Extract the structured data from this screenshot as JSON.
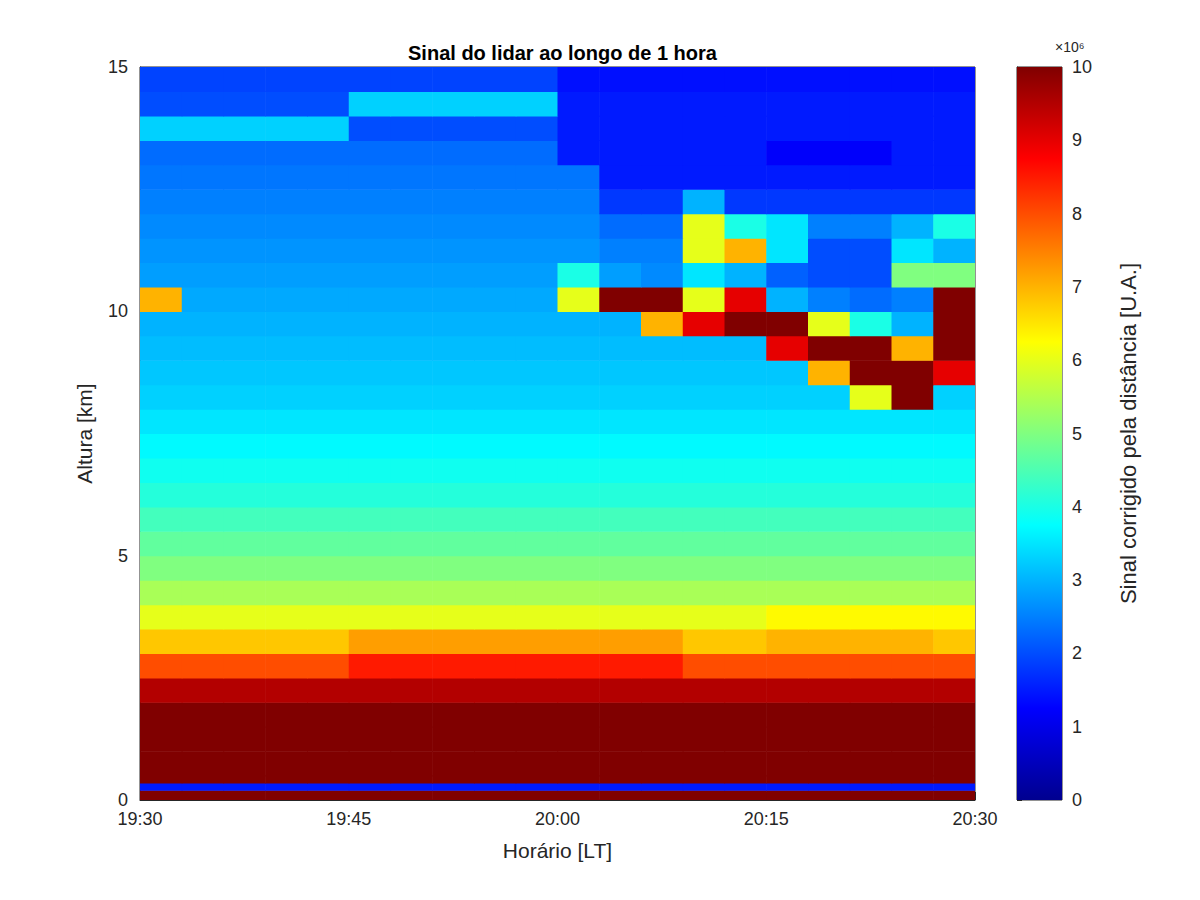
{
  "chart_data": {
    "type": "heatmap",
    "title": "Sinal do lidar ao longo de 1 hora",
    "x_label": "Horário [LT]",
    "y_label": "Altura [km]",
    "xlim": [
      1170,
      1230
    ],
    "xticks": [
      {
        "value": 1170,
        "label": "19:30"
      },
      {
        "value": 1185,
        "label": "19:45"
      },
      {
        "value": 1200,
        "label": "20:00"
      },
      {
        "value": 1215,
        "label": "20:15"
      },
      {
        "value": 1230,
        "label": "20:30"
      }
    ],
    "ylim": [
      0,
      15
    ],
    "yticks": [
      0,
      5,
      10,
      15
    ],
    "grid": false,
    "x_edges": [
      1170,
      1173,
      1176,
      1179,
      1182,
      1185,
      1188,
      1191,
      1194,
      1197,
      1200,
      1203,
      1206,
      1209,
      1212,
      1215,
      1218,
      1221,
      1224,
      1227,
      1230
    ],
    "y_edges": [
      0,
      0.2,
      0.35,
      0.5,
      1,
      1.5,
      2,
      2.5,
      3,
      3.5,
      4,
      4.5,
      5,
      5.5,
      6,
      6.5,
      7,
      7.5,
      8,
      8.5,
      9,
      9.5,
      10,
      10.5,
      11,
      11.5,
      12,
      12.5,
      13,
      13.5,
      14,
      14.5,
      15
    ],
    "cells": [
      [
        10,
        10,
        10,
        10,
        10,
        10,
        10,
        10,
        10,
        10,
        10,
        10,
        10,
        10,
        10,
        10,
        10,
        10,
        10,
        10
      ],
      [
        1.5,
        1.5,
        1.5,
        1.5,
        1.5,
        1.5,
        1.5,
        1.5,
        1.5,
        1.5,
        1.5,
        1.5,
        1.5,
        1.5,
        1.5,
        1.5,
        1.5,
        1.5,
        1.5,
        1.5
      ],
      [
        10,
        10,
        10,
        10,
        10,
        10,
        10,
        10,
        10,
        10,
        10,
        10,
        10,
        10,
        10,
        10,
        10,
        10,
        10,
        10
      ],
      [
        10,
        10,
        10,
        10,
        10,
        10,
        10,
        10,
        10,
        10,
        10,
        10,
        10,
        10,
        10,
        10,
        10,
        10,
        10,
        10
      ],
      [
        10,
        10,
        10,
        10,
        10,
        10,
        10,
        10,
        10,
        10,
        10,
        10,
        10,
        10,
        10,
        10,
        10,
        10,
        10,
        10
      ],
      [
        10,
        10,
        10,
        10,
        10,
        10,
        10,
        10,
        10,
        10,
        10,
        10,
        10,
        10,
        10,
        10,
        10,
        10,
        10,
        10
      ],
      [
        9.5,
        9.5,
        9.5,
        9.5,
        9.5,
        9.5,
        9.5,
        9.5,
        9.5,
        9.5,
        9.5,
        9.5,
        9.5,
        9.5,
        9.5,
        9.5,
        9.5,
        9.5,
        9.5,
        9.5
      ],
      [
        8,
        8,
        8,
        8,
        8,
        8.5,
        8.5,
        8.5,
        8.5,
        8.5,
        8.5,
        8.5,
        8.5,
        8,
        8,
        8,
        8,
        8,
        8,
        8
      ],
      [
        6.8,
        6.8,
        6.8,
        6.8,
        6.8,
        7.2,
        7.2,
        7.2,
        7.2,
        7.2,
        7.2,
        7.2,
        7.2,
        6.8,
        6.8,
        7,
        7,
        7,
        7,
        6.8
      ],
      [
        6,
        6,
        6,
        6,
        6,
        6,
        6,
        6,
        6,
        6,
        6,
        6,
        6,
        6,
        6,
        6.3,
        6.3,
        6.3,
        6.3,
        6.3
      ],
      [
        5.4,
        5.4,
        5.4,
        5.4,
        5.4,
        5.4,
        5.4,
        5.4,
        5.4,
        5.4,
        5.4,
        5.4,
        5.4,
        5.4,
        5.4,
        5.4,
        5.4,
        5.4,
        5.4,
        5.4
      ],
      [
        5,
        5,
        5,
        5,
        5,
        5,
        5,
        5,
        5,
        5,
        5,
        5,
        5,
        5,
        5,
        5,
        5,
        5,
        5,
        5
      ],
      [
        4.7,
        4.7,
        4.7,
        4.7,
        4.7,
        4.7,
        4.7,
        4.7,
        4.7,
        4.7,
        4.7,
        4.7,
        4.7,
        4.7,
        4.7,
        4.7,
        4.7,
        4.7,
        4.7,
        4.7
      ],
      [
        4.4,
        4.4,
        4.4,
        4.4,
        4.4,
        4.4,
        4.4,
        4.4,
        4.4,
        4.4,
        4.4,
        4.4,
        4.4,
        4.4,
        4.4,
        4.4,
        4.4,
        4.4,
        4.4,
        4.4
      ],
      [
        4.1,
        4.1,
        4.1,
        4.1,
        4.1,
        4.1,
        4.1,
        4.1,
        4.1,
        4.1,
        4.1,
        4.1,
        4.1,
        4.1,
        4.1,
        4.1,
        4.1,
        4.1,
        4.1,
        4.1
      ],
      [
        3.9,
        3.9,
        3.9,
        3.9,
        3.9,
        3.9,
        3.9,
        3.9,
        3.9,
        3.9,
        3.9,
        3.9,
        3.9,
        3.9,
        3.9,
        3.9,
        3.9,
        3.9,
        3.9,
        3.9
      ],
      [
        3.7,
        3.7,
        3.7,
        3.7,
        3.7,
        3.7,
        3.7,
        3.7,
        3.7,
        3.7,
        3.7,
        3.7,
        3.7,
        3.7,
        3.7,
        3.7,
        3.7,
        3.7,
        3.7,
        3.7
      ],
      [
        3.5,
        3.5,
        3.5,
        3.5,
        3.5,
        3.5,
        3.5,
        3.5,
        3.5,
        3.5,
        3.5,
        3.5,
        3.5,
        3.5,
        3.5,
        3.5,
        3.5,
        3.5,
        3.5,
        3.5
      ],
      [
        3.3,
        3.3,
        3.3,
        3.3,
        3.3,
        3.3,
        3.3,
        3.3,
        3.3,
        3.3,
        3.3,
        3.3,
        3.3,
        3.3,
        3.3,
        3.3,
        3.3,
        6,
        10,
        3.3
      ],
      [
        3.2,
        3.2,
        3.2,
        3.2,
        3.2,
        3.2,
        3.2,
        3.2,
        3.2,
        3.2,
        3.2,
        3.2,
        3.2,
        3.2,
        3.2,
        3.2,
        7,
        10,
        10,
        9
      ],
      [
        3.1,
        3.1,
        3.1,
        3.1,
        3.1,
        3.1,
        3.1,
        3.1,
        3.1,
        3.1,
        3.1,
        3.1,
        3.1,
        3.1,
        3.1,
        9,
        10,
        10,
        7,
        10
      ],
      [
        3,
        3,
        3,
        3,
        3,
        3,
        3,
        3,
        3,
        3,
        3,
        3,
        7,
        9,
        10,
        10,
        6,
        4,
        3,
        10
      ],
      [
        7,
        2.9,
        2.9,
        2.9,
        2.9,
        2.9,
        2.9,
        2.9,
        2.9,
        2.9,
        6,
        10,
        10,
        6,
        9,
        3,
        2.5,
        2.3,
        2.5,
        10
      ],
      [
        2.8,
        2.8,
        2.8,
        2.8,
        2.8,
        2.8,
        2.8,
        2.8,
        2.8,
        2.8,
        4,
        2.8,
        2.6,
        3.5,
        3,
        2.2,
        2,
        2,
        5,
        5
      ],
      [
        2.7,
        2.7,
        2.7,
        2.7,
        2.7,
        2.7,
        2.7,
        2.7,
        2.7,
        2.7,
        2.7,
        2.5,
        2.5,
        6,
        7,
        3.5,
        2,
        2,
        3.5,
        3
      ],
      [
        2.6,
        2.6,
        2.6,
        2.6,
        2.6,
        2.6,
        2.6,
        2.6,
        2.6,
        2.6,
        2.6,
        2.3,
        2.3,
        6,
        4,
        3.5,
        2.5,
        2.5,
        3,
        4
      ],
      [
        2.5,
        2.5,
        2.5,
        2.5,
        2.5,
        2.5,
        2.5,
        2.5,
        2.5,
        2.5,
        2.5,
        1.8,
        1.8,
        3,
        1.8,
        1.8,
        1.8,
        1.8,
        1.8,
        1.8
      ],
      [
        2.4,
        2.4,
        2.4,
        2.4,
        2.4,
        2.4,
        2.4,
        2.4,
        2.4,
        2.4,
        2.4,
        1.5,
        1.5,
        1.5,
        1.5,
        1.5,
        1.5,
        1.5,
        1.5,
        1.5
      ],
      [
        2.3,
        2.3,
        2.3,
        2.3,
        2.3,
        2.3,
        2.3,
        2.3,
        2.3,
        2.3,
        1.5,
        1.5,
        1.5,
        1.5,
        1.5,
        1.2,
        1.2,
        1.2,
        1.5,
        1.5
      ],
      [
        3.3,
        3.3,
        3.3,
        3.3,
        3.3,
        2,
        2,
        2,
        2,
        2,
        1.5,
        1.5,
        1.5,
        1.5,
        1.5,
        1.5,
        1.5,
        1.5,
        1.5,
        1.5
      ],
      [
        2,
        2,
        2,
        2,
        2,
        3.3,
        3.3,
        3.3,
        3.3,
        3.3,
        1.5,
        1.5,
        1.5,
        1.5,
        1.5,
        1.5,
        1.5,
        1.5,
        1.5,
        1.5
      ],
      [
        1.9,
        1.9,
        1.9,
        1.9,
        1.9,
        1.9,
        1.9,
        1.9,
        1.9,
        1.9,
        1.4,
        1.4,
        1.4,
        1.4,
        1.4,
        1.4,
        1.4,
        1.4,
        1.4,
        1.4
      ]
    ],
    "colorbar_label": "Sinal corrigido pela distância [U.A.]",
    "colorbar_multiplier": "×10⁶",
    "colorbar_range": [
      0,
      10
    ],
    "colorbar_ticks": [
      0,
      1,
      2,
      3,
      4,
      5,
      6,
      7,
      8,
      9,
      10
    ]
  }
}
